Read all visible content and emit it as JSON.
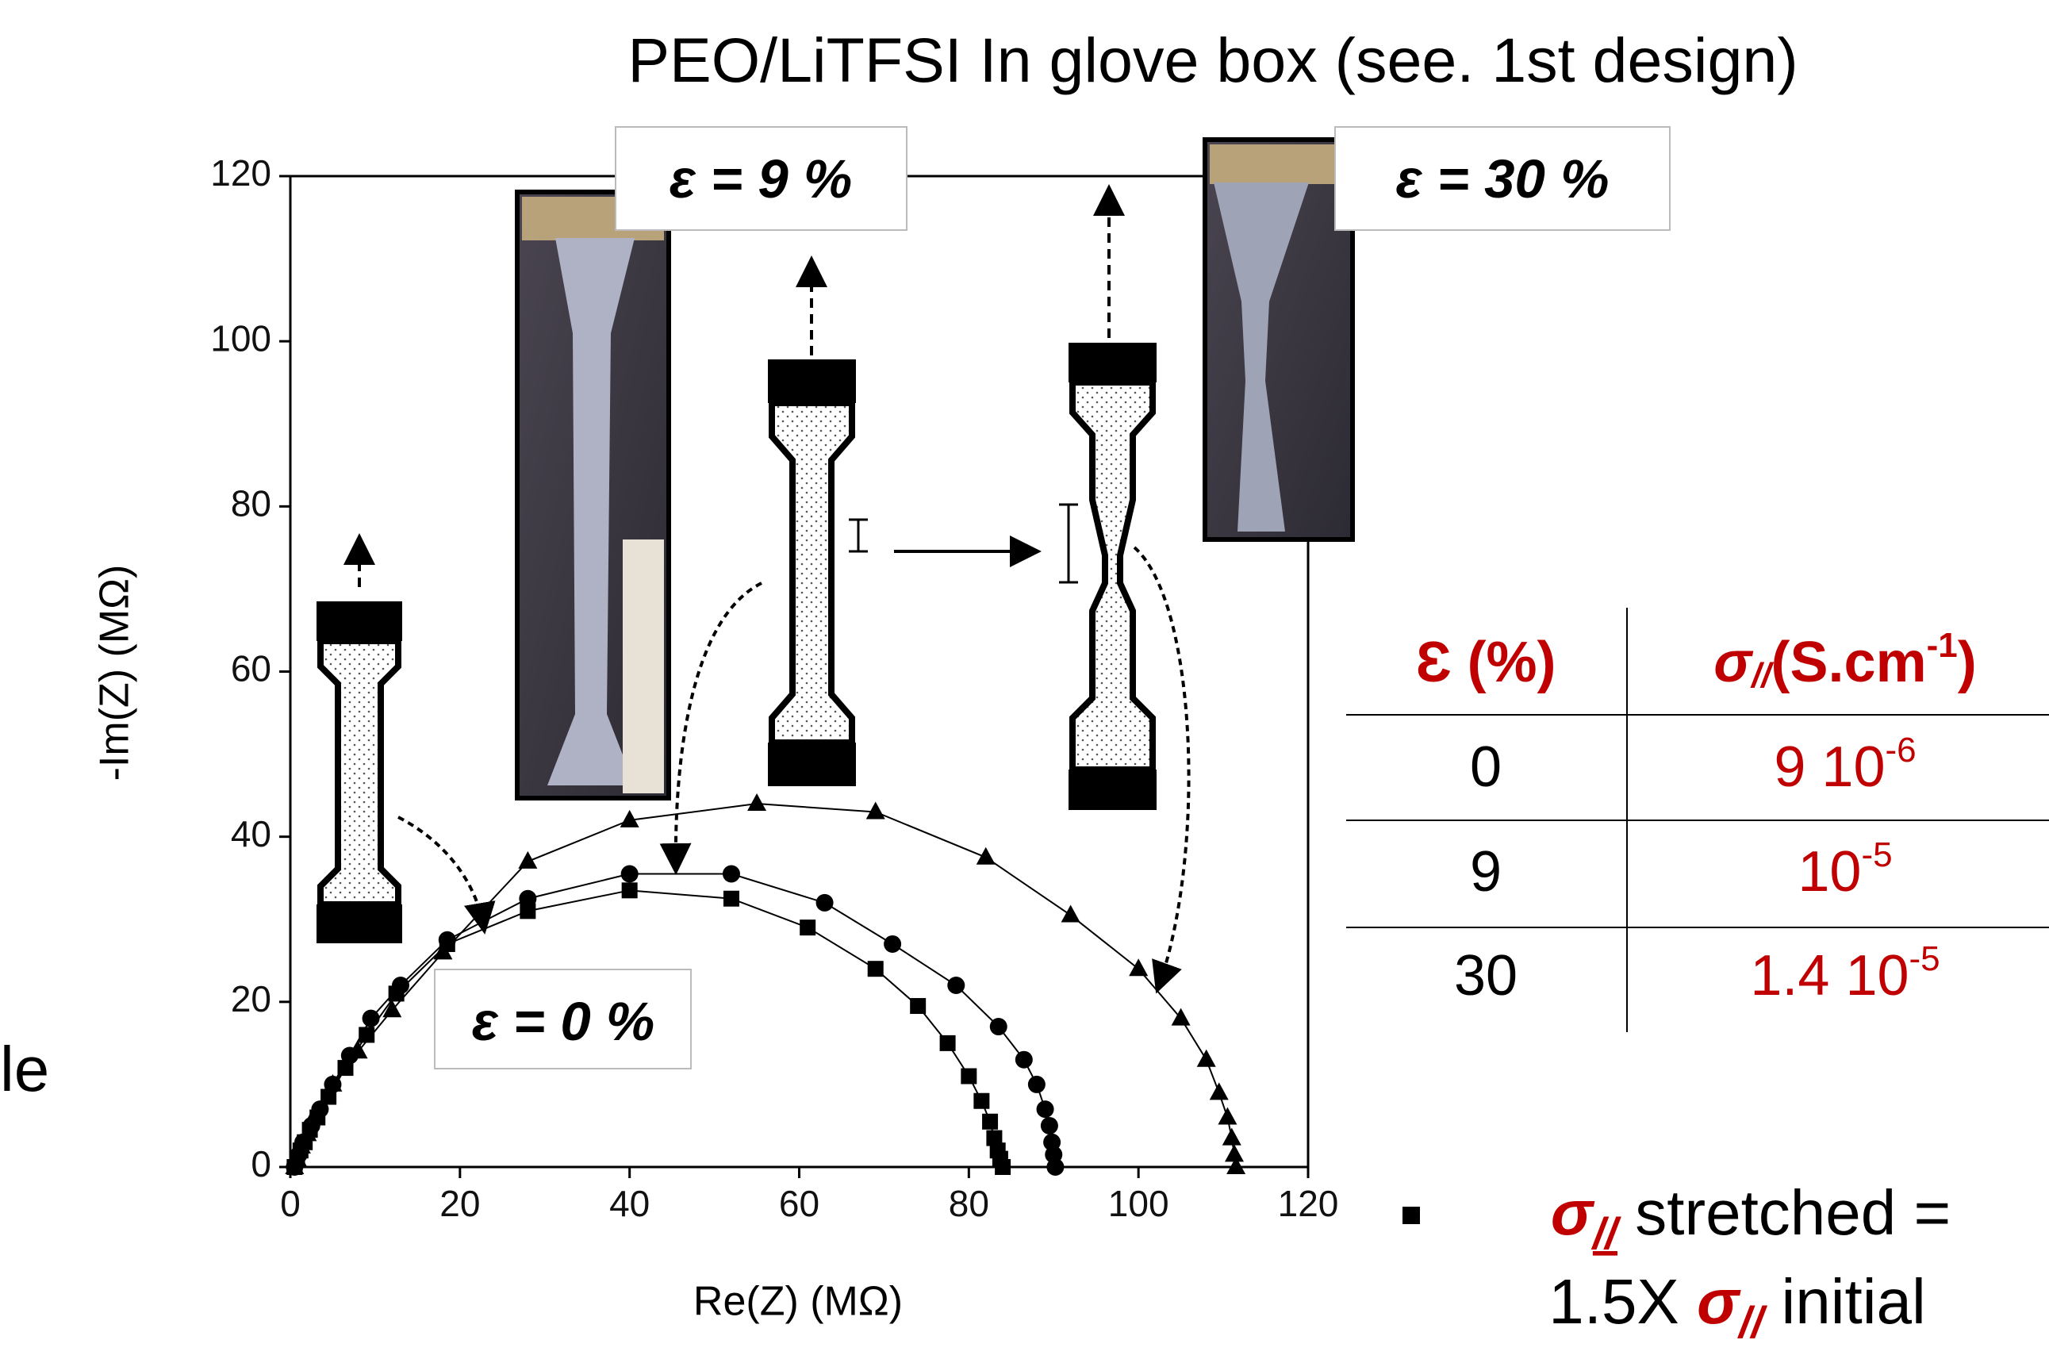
{
  "chart_data": {
    "type": "scatter",
    "title": "PEO/LiTFSI In glove box (see. 1st design)",
    "x_label": "Re(Z) (MΩ)",
    "y_label": "-Im(Z) (MΩ)",
    "xlim": [
      0,
      120
    ],
    "xticks": [
      0,
      20,
      40,
      60,
      80,
      100,
      120
    ],
    "ylim": [
      0,
      120
    ],
    "yticks": [
      0,
      20,
      40,
      60,
      80,
      100,
      120
    ],
    "series": [
      {
        "name": "ε = 0 %",
        "color": "#000000",
        "marker": "square",
        "x": [
          0.5,
          0.8,
          1.2,
          1.7,
          2.3,
          3.2,
          4.5,
          6.5,
          9,
          12.5,
          18.5,
          28,
          40,
          52,
          61,
          69,
          74,
          77.5,
          80,
          81.5,
          82.5,
          83,
          83.4,
          83.7,
          84
        ],
        "values": [
          0,
          1,
          2,
          3,
          4.5,
          6,
          8.5,
          12,
          16,
          21,
          27,
          31,
          33.5,
          32.5,
          29,
          24,
          19.5,
          15,
          11,
          8,
          5.5,
          3.5,
          2,
          1,
          0
        ]
      },
      {
        "name": "ε = 9 %",
        "color": "#000000",
        "marker": "circle",
        "x": [
          0.5,
          1,
          1.5,
          2.5,
          3.5,
          5,
          7,
          9.5,
          13,
          18.5,
          28,
          40,
          52,
          63,
          71,
          78.5,
          83.5,
          86.5,
          88,
          89,
          89.5,
          89.8,
          90,
          90.2
        ],
        "values": [
          0,
          1.5,
          3,
          5,
          7,
          10,
          13.5,
          18,
          22,
          27.5,
          32.5,
          35.5,
          35.5,
          32,
          27,
          22,
          17,
          13,
          10,
          7,
          5,
          3,
          1.5,
          0
        ]
      },
      {
        "name": "ε = 30 %",
        "color": "#000000",
        "marker": "triangle",
        "x": [
          0.5,
          0.8,
          1.3,
          2,
          3,
          5,
          8,
          12,
          18,
          28,
          40,
          55,
          69,
          82,
          92,
          100,
          105,
          108,
          109.5,
          110.5,
          111,
          111.3,
          111.5
        ],
        "values": [
          0,
          1,
          2.5,
          4,
          6.5,
          10,
          14,
          19,
          26,
          37,
          42,
          44,
          43,
          37.5,
          30.5,
          24,
          18,
          13,
          9,
          6,
          3.5,
          1.5,
          0
        ]
      }
    ]
  },
  "table": {
    "header": {
      "strain": "Ɛ (%)",
      "sigma": "σ",
      "sigma_sub": "//",
      "unit": "(S.cm",
      "unit_sup": "-1",
      "unit_end": ")"
    },
    "rows": [
      {
        "strain": "0",
        "conductivity": "9 10",
        "exponent": "-6"
      },
      {
        "strain": "9",
        "conductivity": "10",
        "exponent": "-5"
      },
      {
        "strain": "30",
        "conductivity": "1.4 10",
        "exponent": "-5"
      }
    ]
  },
  "note": {
    "sigma": "σ",
    "sub": "//",
    "line1_rest": " stretched =",
    "line2_start": "1.5X ",
    "sigma2": "σ",
    "sub2": "//",
    "line2_rest": " initial"
  },
  "edge_fragment": "le"
}
